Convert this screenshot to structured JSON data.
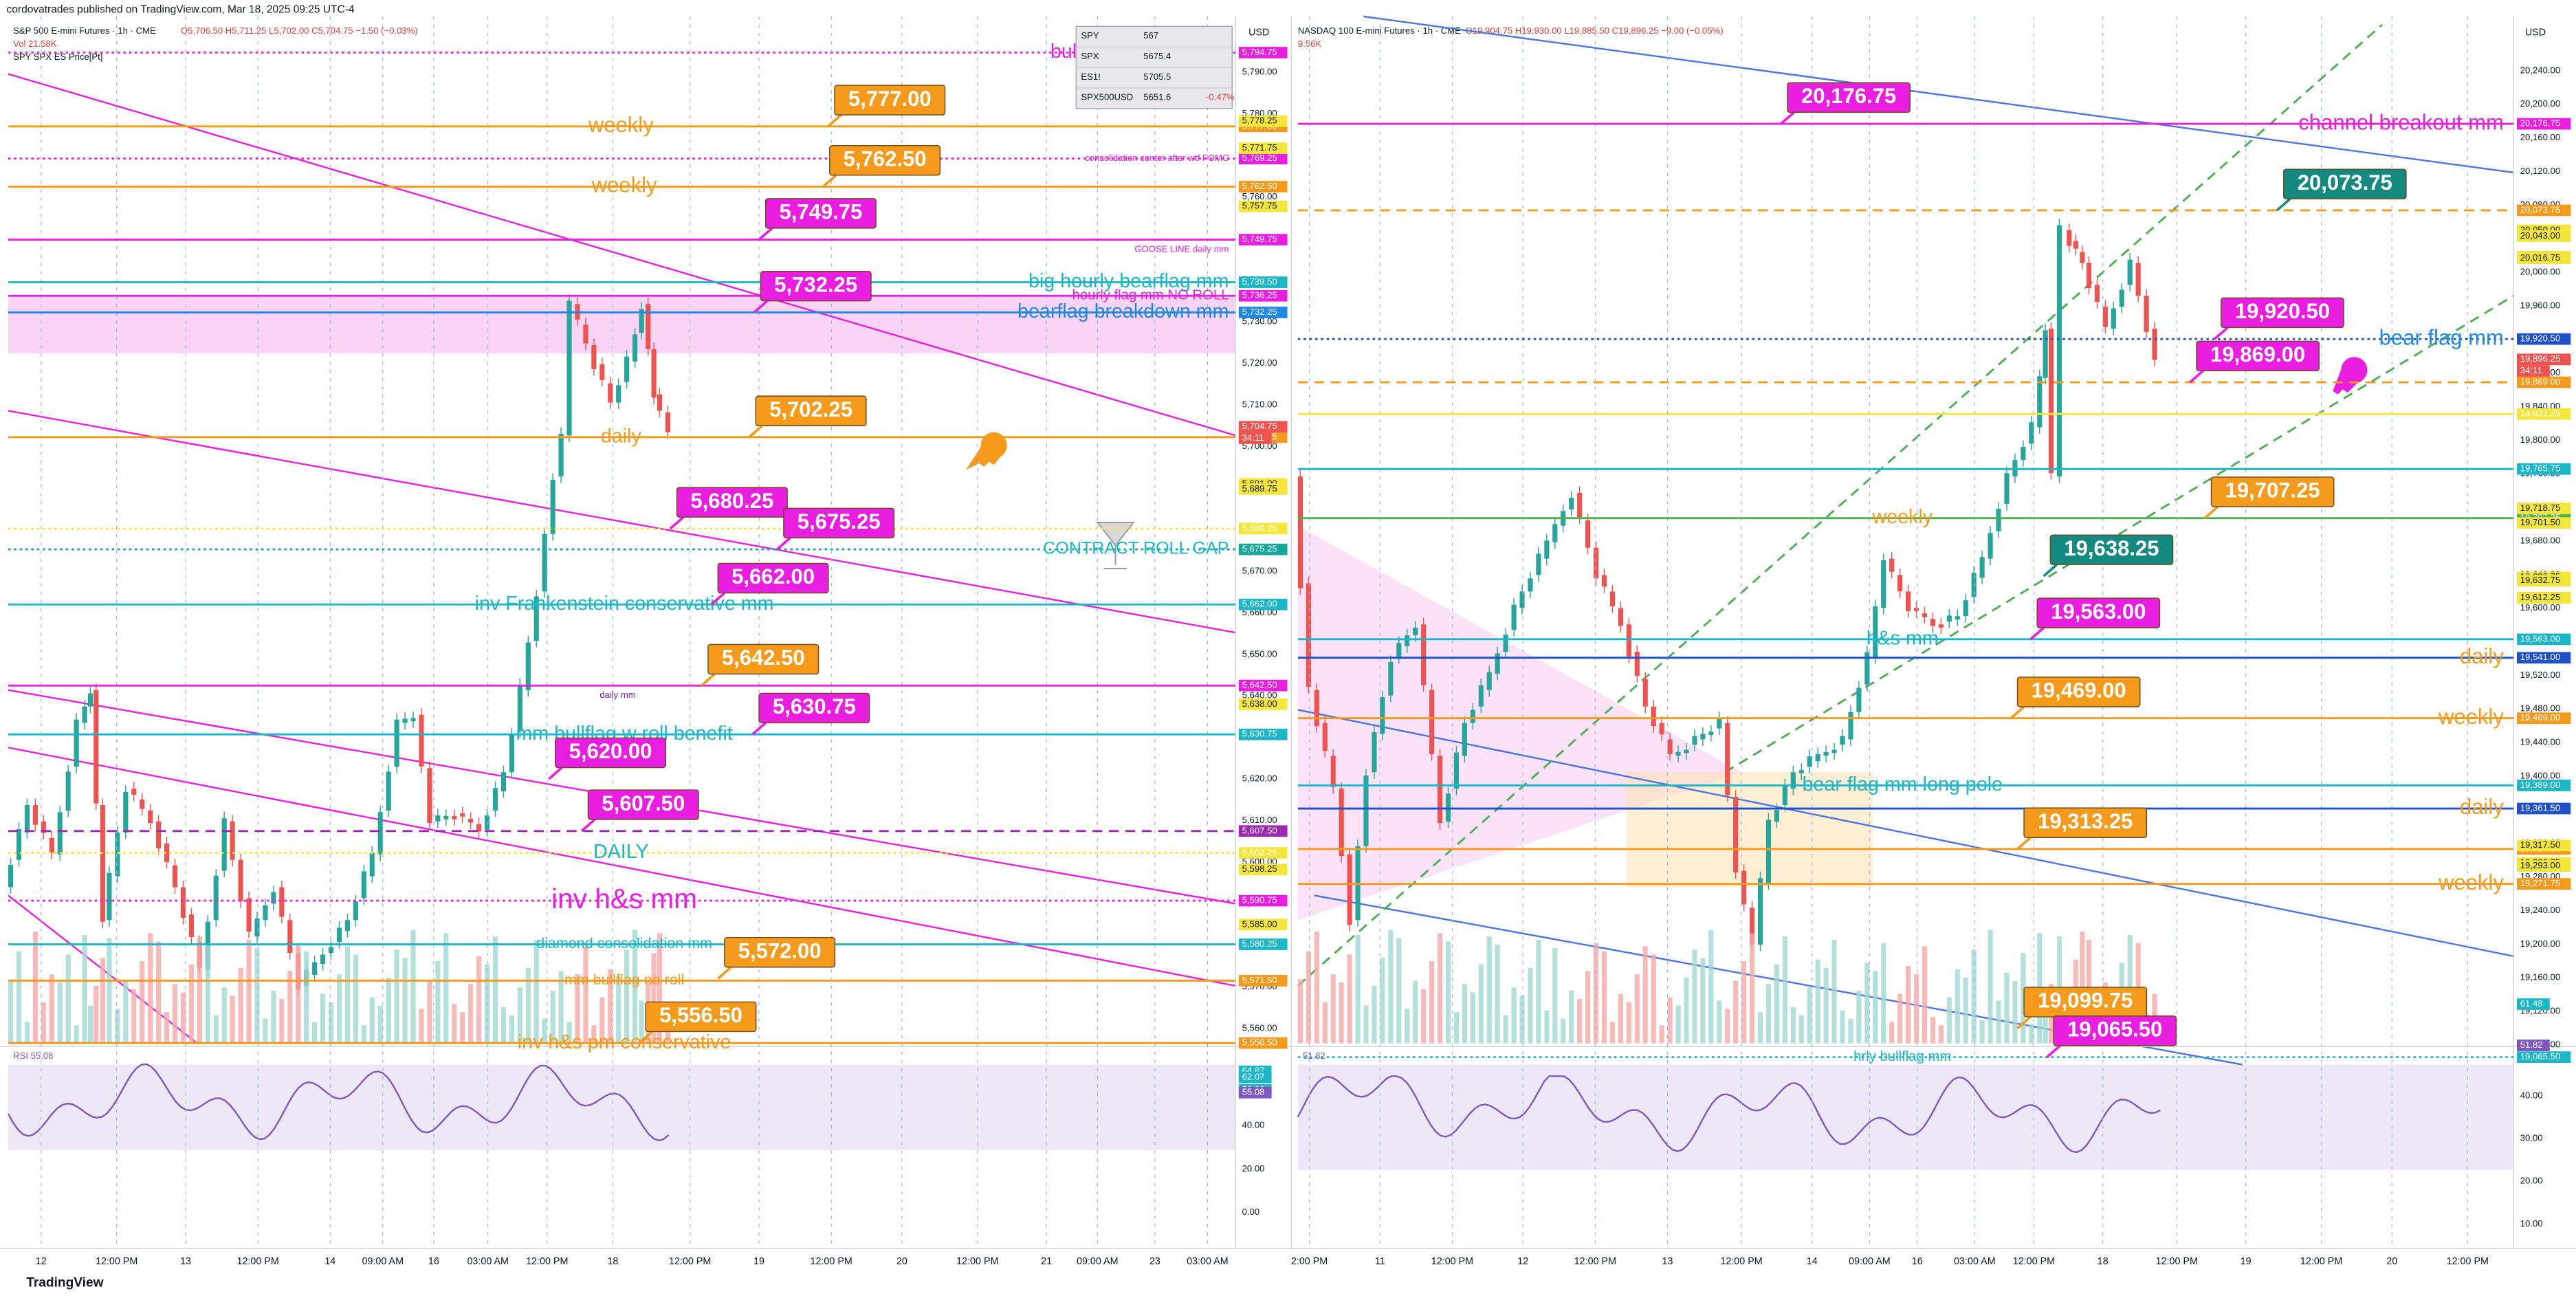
{
  "header": {
    "publisher": "cordovatrades published on TradingView.com, Mar 18, 2025 09:25 UTC-4"
  },
  "footer": {
    "brand": "TradingView"
  },
  "left": {
    "title": "S&P 500 E-mini Futures · 1h · CME",
    "ohlc": "O5,706.50 H5,711.25 L5,702.00 C5,704.75 −1.50 (−0.03%)",
    "volume": "Vol 21.58K",
    "indicator": "SPY SPX ES Price[Pt]",
    "currency": "USD",
    "watchlist": [
      [
        "SPY",
        "567"
      ],
      [
        "SPX",
        "5675.4"
      ],
      [
        "ES1!",
        "5705.5"
      ],
      [
        "SPX500USD",
        "5651.6",
        "-0.47%"
      ]
    ],
    "yticks": [
      "5,790.00",
      "5,780.00",
      "5,770.00",
      "5,760.00",
      "5,750.00",
      "5,740.00",
      "5,730.00",
      "5,720.00",
      "5,710.00",
      "5,700.00",
      "5,690.00",
      "5,680.00",
      "5,670.00",
      "5,660.00",
      "5,650.00",
      "5,640.00",
      "5,630.00",
      "5,620.00",
      "5,610.00",
      "5,600.00",
      "5,590.00",
      "5,580.00",
      "5,570.00",
      "5,560.00"
    ],
    "levels": [
      {
        "price": "5,794.75",
        "note": "bull flag mm with roll",
        "color": "#e91ee0",
        "style": "dot"
      },
      {
        "price": "5,777.00",
        "note": "weekly",
        "color": "#f59a1b",
        "style": "solid",
        "box": true
      },
      {
        "price": "5,769.25",
        "note": "consolidation center after wtf FOMC",
        "color": "#e91ee0",
        "style": "dot"
      },
      {
        "price": "5,762.50",
        "note": "weekly",
        "color": "#f59a1b",
        "style": "solid",
        "box": true
      },
      {
        "price": "5,749.75",
        "note": "GOOSE LINE daily mm",
        "color": "#e91ee0",
        "style": "solid",
        "box": true
      },
      {
        "price": "5,739.50",
        "note": "big hourly bearflag mm",
        "color": "#1bb7c9",
        "style": "solid"
      },
      {
        "price": "5,736.25",
        "note": "hourly flag mm NO ROLL",
        "color": "#e91ee0",
        "style": "solid"
      },
      {
        "price": "5,732.25",
        "note": "bearflag breakdown mm",
        "color": "#1e88e5",
        "box_color": "#e91ee0",
        "style": "solid",
        "box": true
      },
      {
        "price": "5,702.25",
        "note": "daily",
        "color": "#f59a1b",
        "style": "solid",
        "box": true
      },
      {
        "price": "5,680.25",
        "color": "#f5e63b",
        "box_color": "#e91ee0",
        "style": "dot",
        "box": true
      },
      {
        "price": "5,675.25",
        "note": "CONTRACT ROLL GAP",
        "color": "#14a89a",
        "box_color": "#e91ee0",
        "note_color": "#1bb7c9",
        "style": "dot",
        "box": true
      },
      {
        "price": "5,662.00",
        "note": "inv Frankenstein conservative mm",
        "color": "#1bb7c9",
        "box_color": "#e91ee0",
        "style": "solid",
        "box": true
      },
      {
        "price": "5,642.50",
        "note": "daily mm",
        "color": "#e91ee0",
        "box_color": "#f59a1b",
        "note_color": "#7b1fa2",
        "style": "solid",
        "box": true
      },
      {
        "price": "5,630.75",
        "note": "mm bullflag w roll benefit",
        "color": "#1bb7c9",
        "box_color": "#e91ee0",
        "style": "solid",
        "box": true
      },
      {
        "price": "5,620.00",
        "color": "#e91ee0",
        "style": "none",
        "box": true
      },
      {
        "price": "5,607.50",
        "color": "#9c27b0",
        "box_color": "#e91ee0",
        "style": "dash",
        "box": true
      },
      {
        "price": "5,602.25",
        "note": "DAILY",
        "color": "#f5e63b",
        "note_color": "#1bb7c9",
        "style": "dot"
      },
      {
        "price": "5,590.75",
        "note": "inv h&s mm",
        "color": "#e91ee0",
        "style": "dot"
      },
      {
        "price": "5,580.25",
        "note": "diamond consolidation mm",
        "color": "#1bb7c9",
        "style": "solid"
      },
      {
        "price": "5,572.00",
        "color": "#f59a1b",
        "style": "none",
        "box": true
      },
      {
        "price": "5,571.50",
        "note": "mm bullflag no roll",
        "color": "#f59a1b",
        "style": "solid"
      },
      {
        "price": "5,556.50",
        "note": "inv h&s pm conservative",
        "color": "#f59a1b",
        "style": "solid",
        "box": true
      }
    ],
    "extra_tags": [
      "5,778.25",
      "5,771.75",
      "5,757.75",
      "5,691.00",
      "5,689.75",
      "5,638.00",
      "5,598.25",
      "5,585.00"
    ],
    "last_price": "5,704.75",
    "countdown": "34:11",
    "xlabels": [
      "12",
      "12:00 PM",
      "13",
      "12:00 PM",
      "14",
      "09:00 AM",
      "16",
      "03:00 AM",
      "12:00 PM",
      "18",
      "12:00 PM",
      "19",
      "12:00 PM",
      "20",
      "12:00 PM",
      "21",
      "09:00 AM",
      "23",
      "03:00 AM"
    ],
    "rsi": {
      "label": "RSI 55.08",
      "ticks": [
        "40.00",
        "20.00",
        "0.00"
      ],
      "tags": [
        "64.87",
        "62.07",
        "56.32",
        "55.08"
      ]
    }
  },
  "right": {
    "title": "NASDAQ 100 E-mini Futures · 1h · CME",
    "ohlc": "O19,904.75 H19,930.00 L19,885.50 C19,896.25 −9.00 (−0.05%)",
    "volume": "9.56K",
    "currency": "USD",
    "yticks": [
      "20,240.00",
      "20,200.00",
      "20,160.00",
      "20,120.00",
      "20,080.00",
      "20,040.00",
      "20,000.00",
      "19,960.00",
      "19,920.00",
      "19,880.00",
      "19,840.00",
      "19,800.00",
      "19,760.00",
      "19,720.00",
      "19,680.00",
      "19,640.00",
      "19,600.00",
      "19,560.00",
      "19,520.00",
      "19,480.00",
      "19,440.00",
      "19,400.00",
      "19,360.00",
      "19,320.00",
      "19,280.00",
      "19,240.00",
      "19,200.00",
      "19,160.00",
      "19,120.00",
      "19,080.00"
    ],
    "levels": [
      {
        "price": "20,176.75",
        "note": "channel breakout mm",
        "color": "#e91ee0",
        "style": "solid",
        "box": true
      },
      {
        "price": "20,073.75",
        "color": "#f59a1b",
        "box_color": "#14897f",
        "style": "dash",
        "box": true
      },
      {
        "price": "19,920.50",
        "note": "bear flag mm",
        "color": "#1e50c8",
        "box_color": "#e91ee0",
        "note_color": "#1e88e5",
        "style": "dot",
        "box": true
      },
      {
        "price": "19,869.00",
        "color": "#f59a1b",
        "box_color": "#e91ee0",
        "style": "dash",
        "box": true
      },
      {
        "price": "19,831.25",
        "color": "#f5e63b",
        "style": "solid"
      },
      {
        "price": "19,765.75",
        "color": "#1bb7c9",
        "style": "solid"
      },
      {
        "price": "19,707.25",
        "note": "weekly",
        "color": "#4caf50",
        "box_color": "#f59a1b",
        "note_color": "#f59a1b",
        "style": "solid",
        "box": true
      },
      {
        "price": "19,638.25",
        "color": "#14897f",
        "style": "none",
        "box": true
      },
      {
        "price": "19,563.00",
        "note": "h&s mm",
        "color": "#1bb7c9",
        "box_color": "#e91ee0",
        "style": "solid",
        "box": true
      },
      {
        "price": "19,541.00",
        "note": "daily",
        "color": "#1e50c8",
        "note_color": "#f59a1b",
        "style": "solid"
      },
      {
        "price": "19,469.00",
        "note": "weekly",
        "color": "#f59a1b",
        "style": "solid",
        "box": true
      },
      {
        "price": "19,389.00",
        "note": "bear flag mm long pole",
        "color": "#1bb7c9",
        "style": "solid"
      },
      {
        "price": "19,361.50",
        "note": "daily",
        "color": "#1e50c8",
        "note_color": "#f59a1b",
        "style": "solid"
      },
      {
        "price": "19,313.25",
        "color": "#f59a1b",
        "style": "solid",
        "box": true
      },
      {
        "price": "19,271.75",
        "note": "weekly",
        "color": "#f59a1b",
        "style": "solid"
      },
      {
        "price": "19,099.75",
        "color": "#f59a1b",
        "style": "none",
        "box": true
      },
      {
        "price": "19,065.50",
        "note": "hrly bullflag mm",
        "color": "#1bb7c9",
        "box_color": "#e91ee0",
        "style": "dot",
        "box": true
      }
    ],
    "extra_tags": [
      "20,050.00",
      "20,043.00",
      "20,018.50",
      "20,016.75",
      "19,718.75",
      "19,701.50",
      "19,636.75",
      "19,632.75",
      "19,612.50",
      "19,612.25",
      "19,317.50",
      "19,296.75",
      "19,293.00"
    ],
    "last_price": "19,896.25",
    "countdown": "34:11",
    "xlabels": [
      "2:00 PM",
      "11",
      "12:00 PM",
      "12",
      "12:00 PM",
      "13",
      "12:00 PM",
      "14",
      "09:00 AM",
      "16",
      "03:00 AM",
      "12:00 PM",
      "18",
      "12:00 PM",
      "19",
      "12:00 PM",
      "20",
      "12:00 PM"
    ],
    "rsi": {
      "label": "51.82",
      "ticks": [
        "40.00",
        "30.00",
        "20.00",
        "10.00"
      ],
      "tags": [
        "61.48",
        "51.82"
      ]
    }
  }
}
